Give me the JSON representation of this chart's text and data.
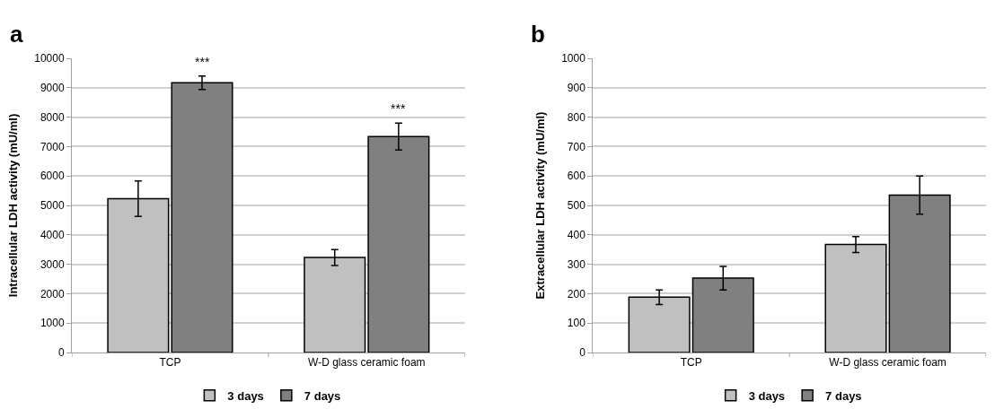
{
  "chart_data": [
    {
      "type": "bar",
      "title": "a",
      "ylabel": "Intracellular LDH activity (mU/ml)",
      "categories": [
        "TCP",
        "W-D glass ceramic foam"
      ],
      "series": [
        {
          "name": "3 days",
          "color": "#c0c0c0",
          "values": [
            5230,
            3230
          ],
          "errors": [
            600,
            270
          ]
        },
        {
          "name": "7 days",
          "color": "#808080",
          "values": [
            9170,
            7340
          ],
          "errors": [
            230,
            460
          ]
        }
      ],
      "ylim": [
        0,
        10000
      ],
      "yticks": [
        0,
        1000,
        2000,
        3000,
        4000,
        5000,
        6000,
        7000,
        8000,
        9000,
        10000
      ],
      "grid": "y",
      "legend": "bottom",
      "annotations": [
        {
          "text": "***",
          "x": "TCP",
          "y": 9170
        },
        {
          "text": "***",
          "x": "W-D glass ceramic foam",
          "y": 7340
        }
      ]
    },
    {
      "type": "bar",
      "title": "b",
      "ylabel": "Extracellular LDH activity (mU/ml)",
      "categories": [
        "TCP",
        "W-D glass ceramic foam"
      ],
      "series": [
        {
          "name": "3 days",
          "color": "#c0c0c0",
          "values": [
            188,
            367
          ],
          "errors": [
            25,
            27
          ]
        },
        {
          "name": "7 days",
          "color": "#808080",
          "values": [
            253,
            535
          ],
          "errors": [
            40,
            65
          ]
        }
      ],
      "ylim": [
        0,
        1000
      ],
      "yticks": [
        0,
        100,
        200,
        300,
        400,
        500,
        600,
        700,
        800,
        900,
        1000
      ],
      "grid": "y",
      "legend": "bottom"
    }
  ]
}
